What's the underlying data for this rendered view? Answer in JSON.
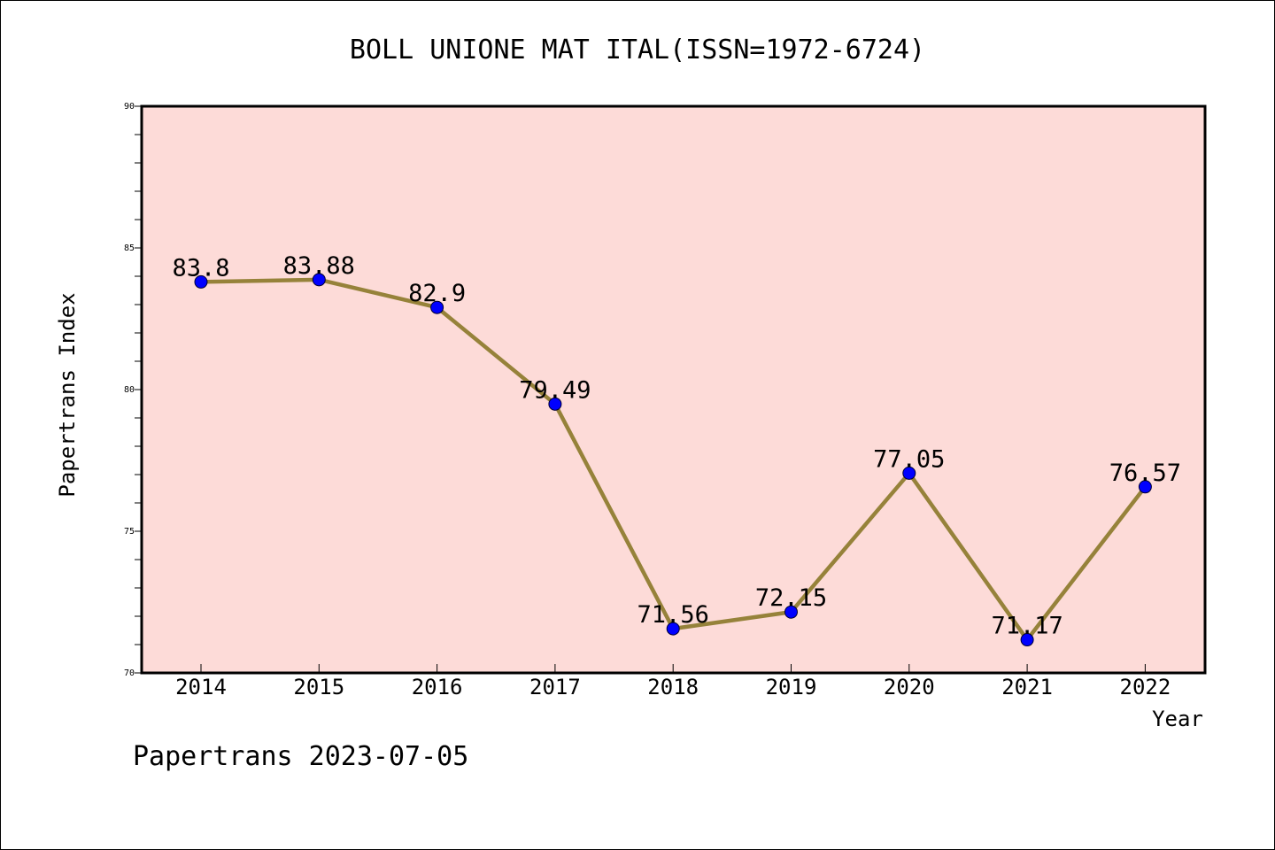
{
  "chart_data": {
    "type": "line",
    "title": "BOLL UNIONE MAT ITAL(ISSN=1972-6724)",
    "xlabel": "Year",
    "ylabel": "Papertrans Index",
    "categories": [
      "2014",
      "2015",
      "2016",
      "2017",
      "2018",
      "2019",
      "2020",
      "2021",
      "2022"
    ],
    "series": [
      {
        "values": [
          83.8,
          83.88,
          82.9,
          79.49,
          71.56,
          72.15,
          77.05,
          71.17,
          76.57
        ],
        "labels": [
          "83.8",
          "83.88",
          "82.9",
          "79.49",
          "71.56",
          "72.15",
          "77.05",
          "71.17",
          "76.57"
        ]
      }
    ],
    "ylim": [
      70,
      90
    ],
    "yticks": [
      "70",
      "75",
      "80",
      "85",
      "90"
    ],
    "grid": false,
    "colors": {
      "plot_background": "#fddbd8",
      "line": "#96823a",
      "marker": "#0000ff"
    }
  },
  "footer": "Papertrans 2023-07-05"
}
